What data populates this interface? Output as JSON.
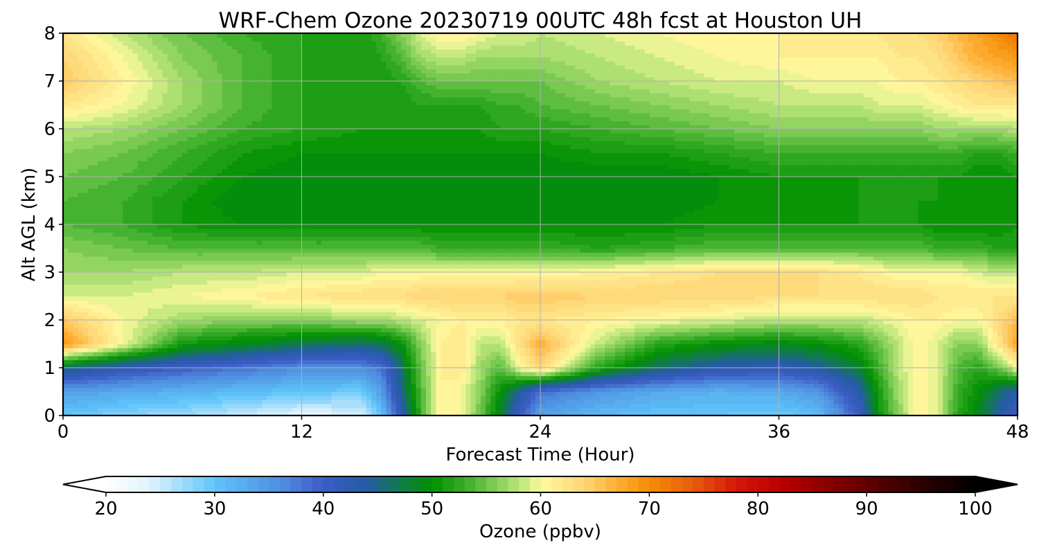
{
  "chart_data": {
    "type": "heatmap",
    "title": "WRF-Chem Ozone  20230719 00UTC 48h fcst at Houston UH",
    "xlabel": "Forecast Time (Hour)",
    "ylabel": "Alt AGL (km)",
    "xlim": [
      0,
      48
    ],
    "ylim": [
      0,
      8
    ],
    "xticks": [
      0,
      12,
      24,
      36,
      48
    ],
    "yticks": [
      0,
      1,
      2,
      3,
      4,
      5,
      6,
      7,
      8
    ],
    "grid": true,
    "x_hours": [
      0,
      3,
      6,
      9,
      12,
      15,
      16,
      17,
      18,
      19,
      20,
      21,
      22,
      23,
      24,
      27,
      30,
      33,
      36,
      38,
      40,
      41,
      42,
      43,
      44,
      45,
      46,
      47,
      48
    ],
    "y_km": [
      0,
      0.5,
      1,
      1.5,
      2,
      2.5,
      3,
      3.5,
      4,
      4.5,
      5,
      5.5,
      6,
      6.5,
      7,
      7.5,
      8
    ],
    "ozone_ppbv": [
      [
        30,
        28,
        27,
        25,
        23,
        24,
        30,
        42,
        53,
        61,
        60,
        55,
        48,
        40,
        34,
        31,
        30,
        30,
        29,
        31,
        40,
        50,
        56,
        61,
        59,
        52,
        49,
        44,
        40
      ],
      [
        34,
        33,
        32,
        31,
        30,
        29,
        34,
        45,
        54,
        61,
        60,
        56,
        50,
        44,
        38,
        35,
        33,
        32,
        33,
        35,
        43,
        51,
        57,
        61,
        59,
        53,
        50,
        46,
        43
      ],
      [
        46,
        42,
        40,
        38,
        36,
        36,
        38,
        46,
        55,
        61,
        62,
        57,
        54,
        60,
        64,
        52,
        46,
        43,
        42,
        44,
        48,
        53,
        58,
        61,
        59,
        54,
        52,
        55,
        60
      ],
      [
        69,
        60,
        51,
        49,
        47,
        46,
        47,
        50,
        56,
        61,
        62,
        58,
        58,
        63,
        67,
        58,
        52,
        50,
        49,
        50,
        52,
        55,
        58,
        61,
        59,
        56,
        56,
        62,
        68
      ],
      [
        65,
        60,
        57,
        56,
        56,
        57,
        57,
        58,
        59,
        60,
        61,
        61,
        61,
        62,
        62,
        61,
        60,
        59,
        58,
        58,
        58,
        59,
        60,
        61,
        61,
        60,
        60,
        63,
        66
      ],
      [
        59,
        59,
        60,
        61,
        62,
        63,
        63,
        63,
        64,
        64,
        64,
        64,
        64,
        65,
        65,
        64,
        64,
        64,
        63,
        63,
        63,
        63,
        63,
        63,
        62,
        62,
        62,
        62,
        62
      ],
      [
        57,
        57,
        58,
        58,
        59,
        59,
        60,
        60,
        60,
        60,
        60,
        60,
        60,
        60,
        60,
        61,
        62,
        63,
        63,
        63,
        62,
        61,
        60,
        60,
        60,
        60,
        59,
        58,
        58
      ],
      [
        56,
        55,
        54,
        54,
        54,
        54,
        54,
        54,
        54,
        53,
        53,
        53,
        53,
        53,
        53,
        52,
        53,
        54,
        54,
        54,
        54,
        54,
        54,
        54,
        53,
        53,
        53,
        52,
        52
      ],
      [
        54,
        53,
        51,
        50,
        50,
        50,
        50,
        50,
        50,
        50,
        50,
        50,
        50,
        50,
        50,
        50,
        50,
        51,
        51,
        51,
        51,
        51,
        51,
        51,
        50,
        50,
        50,
        50,
        51
      ],
      [
        54,
        53,
        51,
        49,
        49,
        49,
        49,
        49,
        49,
        49,
        49,
        49,
        49,
        49,
        49,
        49,
        49,
        50,
        50,
        50,
        51,
        51,
        51,
        51,
        51,
        50,
        50,
        50,
        51
      ],
      [
        55,
        54,
        52,
        50,
        49,
        49,
        49,
        49,
        49,
        49,
        49,
        49,
        49,
        49,
        49,
        49,
        49,
        50,
        51,
        51,
        51,
        51,
        51,
        51,
        51,
        51,
        50,
        50,
        51
      ],
      [
        56,
        55,
        53,
        51,
        50,
        50,
        50,
        50,
        50,
        50,
        50,
        50,
        50,
        50,
        50,
        51,
        51,
        52,
        53,
        53,
        53,
        53,
        53,
        53,
        53,
        53,
        52,
        52,
        53
      ],
      [
        58,
        57,
        55,
        53,
        52,
        51,
        51,
        51,
        51,
        51,
        51,
        51,
        52,
        52,
        52,
        53,
        54,
        55,
        56,
        56,
        56,
        56,
        56,
        56,
        57,
        57,
        57,
        57,
        58
      ],
      [
        62,
        60,
        57,
        54,
        52,
        51,
        51,
        51,
        52,
        52,
        52,
        52,
        53,
        53,
        54,
        55,
        56,
        57,
        58,
        58,
        58,
        59,
        59,
        59,
        60,
        61,
        62,
        62,
        62
      ],
      [
        65,
        61,
        57,
        54,
        52,
        51,
        51,
        52,
        54,
        55,
        55,
        55,
        55,
        55,
        55,
        57,
        58,
        59,
        59,
        60,
        60,
        60,
        61,
        61,
        62,
        63,
        64,
        65,
        66
      ],
      [
        64,
        60,
        56,
        54,
        52,
        51,
        52,
        54,
        57,
        58,
        58,
        57,
        57,
        57,
        57,
        58,
        59,
        60,
        61,
        61,
        61,
        61,
        62,
        62,
        63,
        65,
        67,
        68,
        69
      ],
      [
        62,
        58,
        55,
        53,
        52,
        51,
        53,
        56,
        59,
        61,
        61,
        60,
        59,
        59,
        58,
        59,
        60,
        61,
        61,
        61,
        61,
        62,
        63,
        63,
        64,
        66,
        68,
        70,
        72
      ]
    ],
    "colorbar": {
      "label": "Ozone  (ppbv)",
      "min": 20,
      "max": 100,
      "step": 1,
      "extend": "both",
      "ticks": [
        "20",
        "30",
        "40",
        "50",
        "60",
        "70",
        "80",
        "90",
        "100"
      ],
      "stops": [
        {
          "v": 20,
          "c": "#ffffff"
        },
        {
          "v": 24,
          "c": "#dff3fe"
        },
        {
          "v": 30,
          "c": "#5fc4fa"
        },
        {
          "v": 36,
          "c": "#4f8fe0"
        },
        {
          "v": 40,
          "c": "#3c5cc4"
        },
        {
          "v": 44,
          "c": "#245ca6"
        },
        {
          "v": 47,
          "c": "#117a4e"
        },
        {
          "v": 50,
          "c": "#019000"
        },
        {
          "v": 53,
          "c": "#38ac28"
        },
        {
          "v": 56,
          "c": "#86cf5a"
        },
        {
          "v": 59,
          "c": "#d6ee8a"
        },
        {
          "v": 60,
          "c": "#fffaa0"
        },
        {
          "v": 64,
          "c": "#fed576"
        },
        {
          "v": 67,
          "c": "#fdae34"
        },
        {
          "v": 70,
          "c": "#f48d06"
        },
        {
          "v": 74,
          "c": "#e85c0b"
        },
        {
          "v": 78,
          "c": "#d41708"
        },
        {
          "v": 82,
          "c": "#bc0000"
        },
        {
          "v": 86,
          "c": "#8e0000"
        },
        {
          "v": 91,
          "c": "#560000"
        },
        {
          "v": 96,
          "c": "#230000"
        },
        {
          "v": 100,
          "c": "#000000"
        }
      ]
    }
  }
}
